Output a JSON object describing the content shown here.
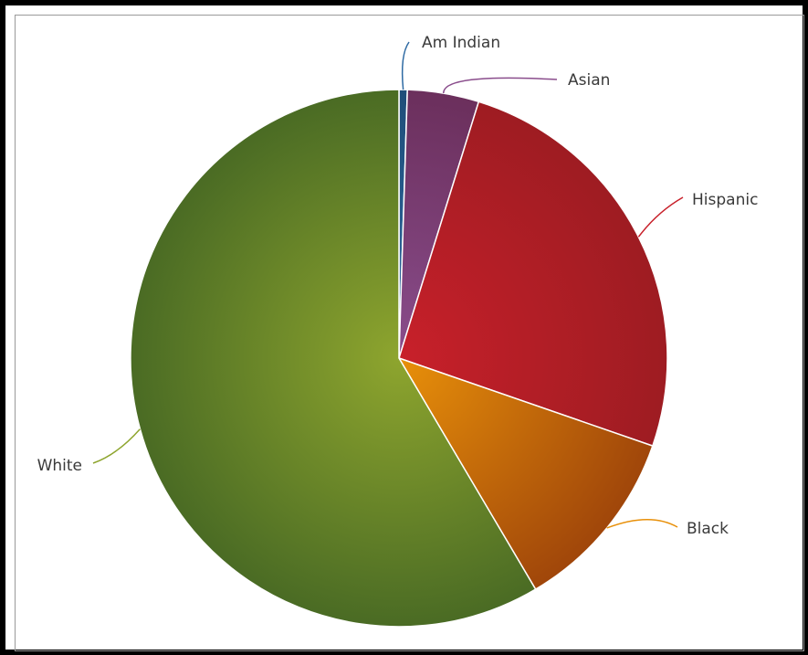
{
  "chart_data": {
    "type": "pie",
    "title": "",
    "slices": [
      {
        "label": "Am Indian",
        "value": 0.5,
        "color": "#1f4e79",
        "color_light": "#2e6aa3"
      },
      {
        "label": "Asian",
        "value": 4.3,
        "color": "#6b2f5c",
        "color_light": "#8a4d8c"
      },
      {
        "label": "Hispanic",
        "value": 25.5,
        "color": "#9e1c22",
        "color_light": "#c8202a"
      },
      {
        "label": "Black",
        "value": 11.2,
        "color": "#a0460a",
        "color_light": "#e8900a"
      },
      {
        "label": "White",
        "value": 58.5,
        "color": "#4a6b24",
        "color_light": "#8ea52e"
      }
    ],
    "legend": "none",
    "labels": "outside with leader lines"
  }
}
